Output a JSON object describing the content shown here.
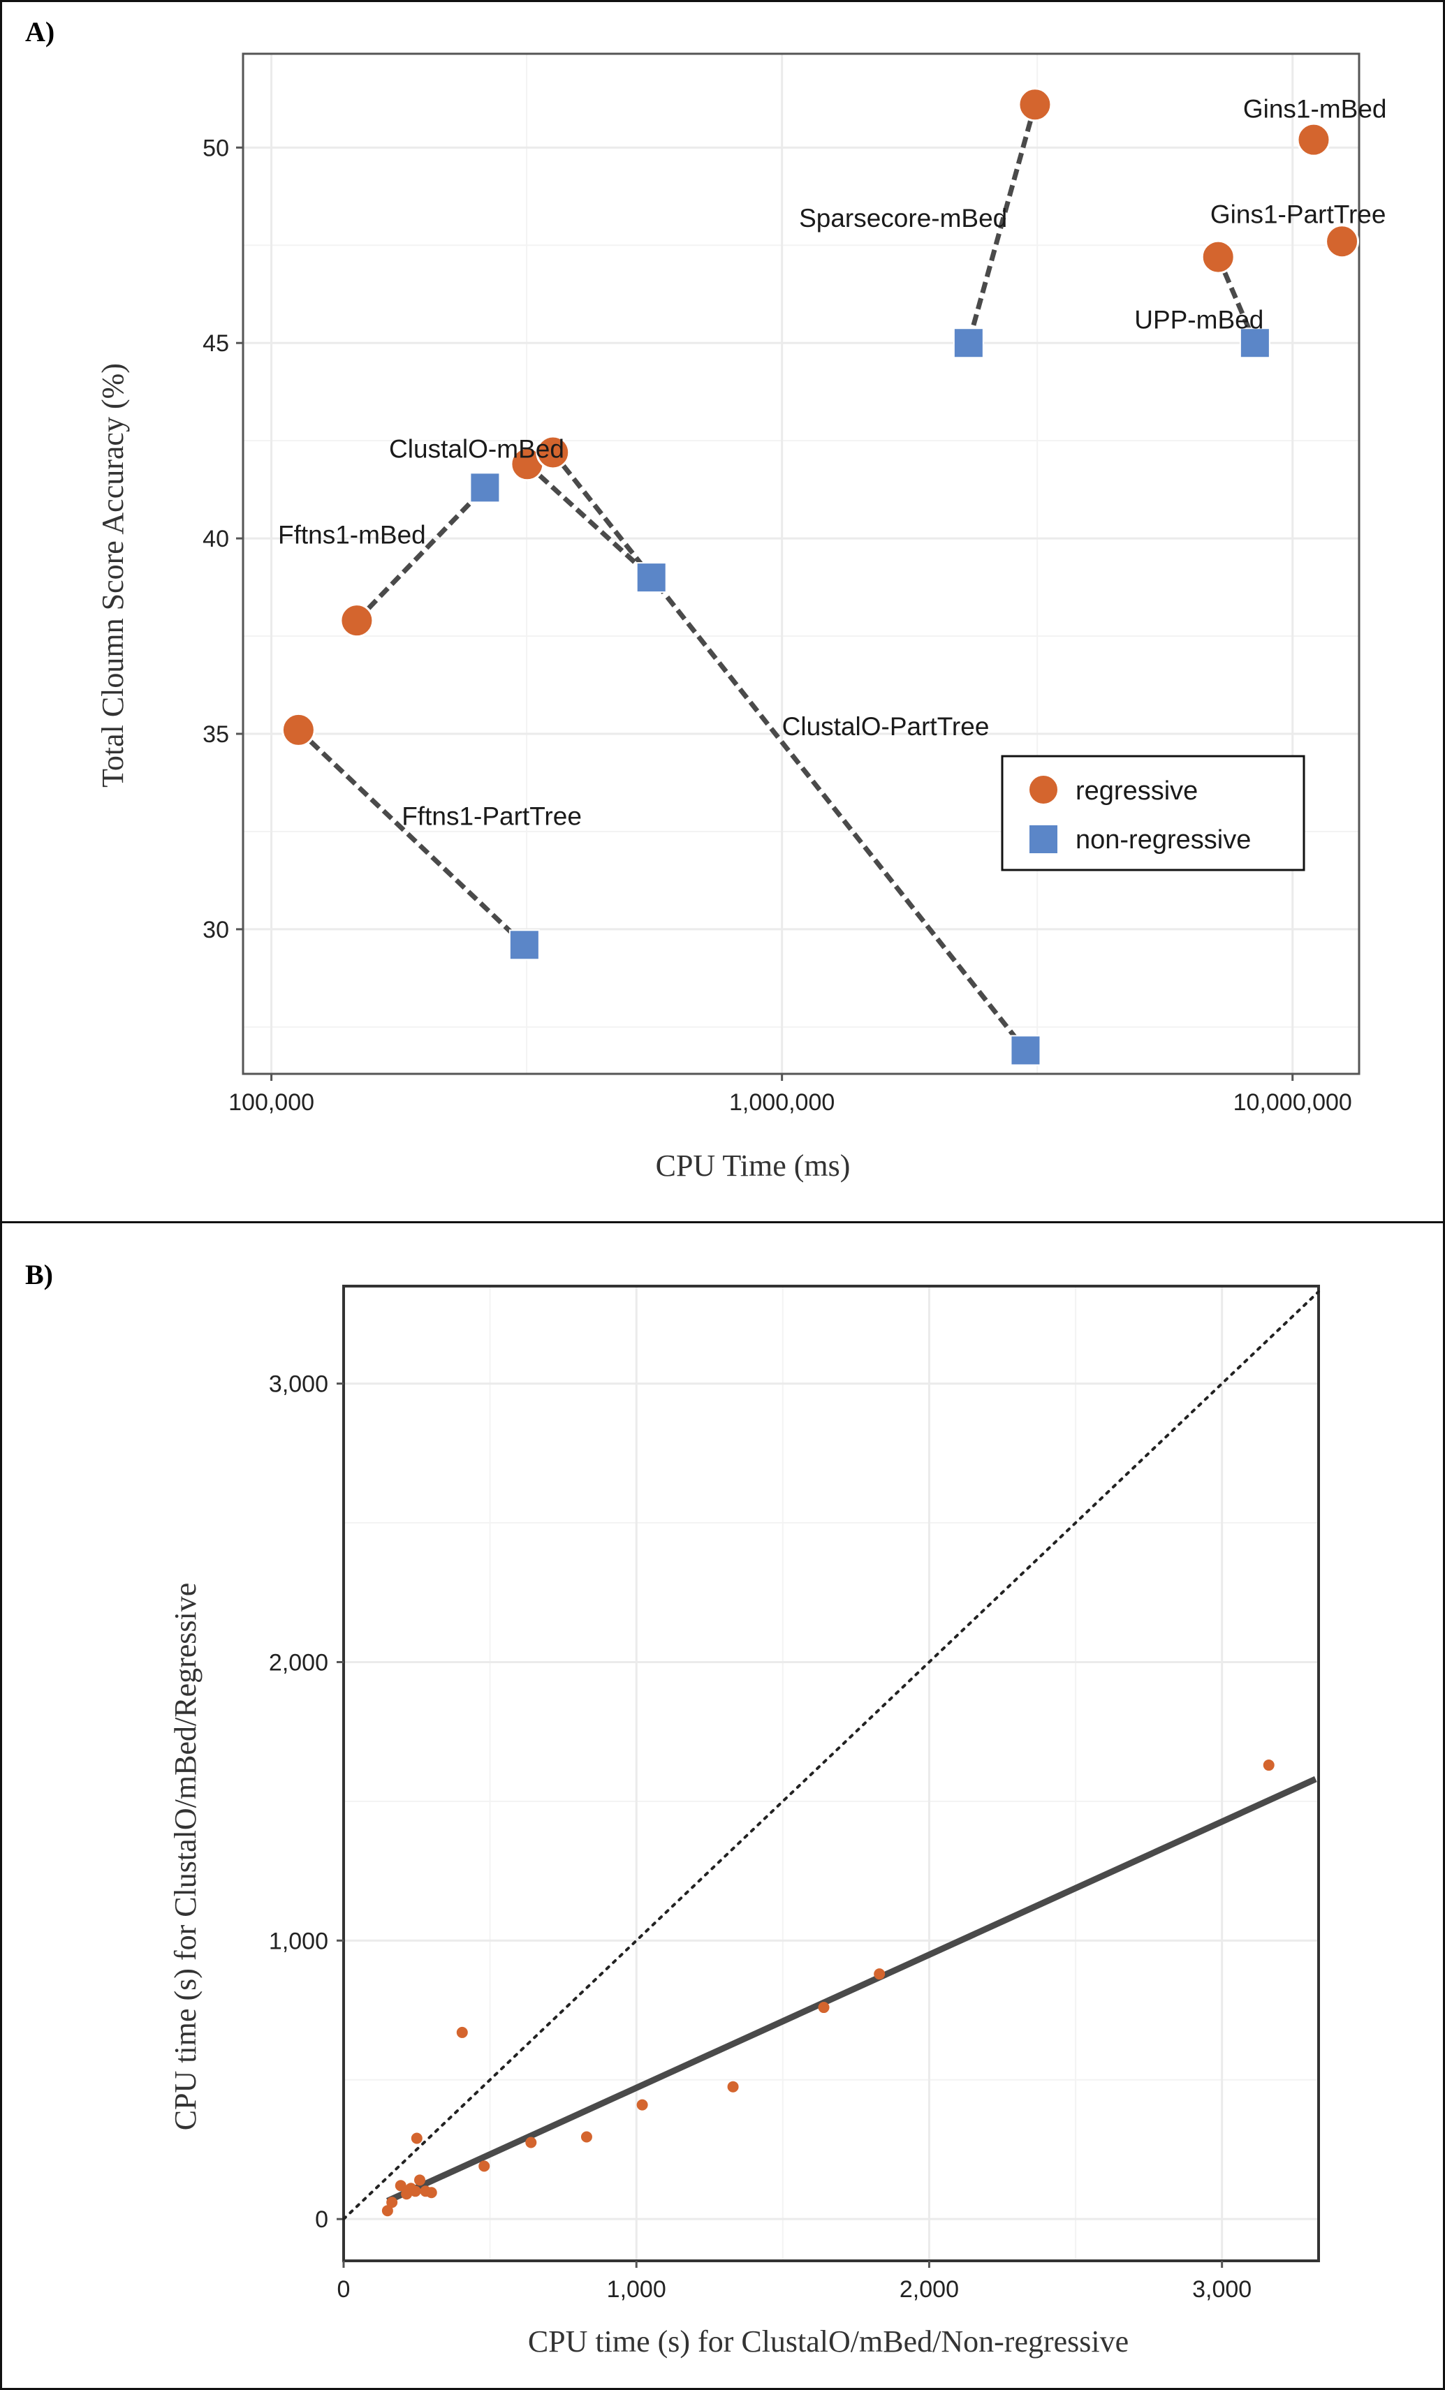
{
  "panels": {
    "a_label": "A)",
    "b_label": "B)"
  },
  "colors": {
    "regressive": "#d4652e",
    "non_regressive": "#5b86c8",
    "connector": "#4a4a4a",
    "grid": "#ebebeb",
    "axis": "#555555"
  },
  "chart_data": [
    {
      "type": "scatter",
      "title": "",
      "xlabel": "CPU Time (ms)",
      "ylabel": "Total Cloumn Score Accuracy (%)",
      "xscale": "log",
      "xlim": [
        88000,
        13500000
      ],
      "ylim": [
        26.3,
        52.4
      ],
      "xticks": [
        100000,
        1000000,
        10000000
      ],
      "xtick_labels": [
        "100,000",
        "1,000,000",
        "10,000,000"
      ],
      "yticks": [
        30,
        35,
        40,
        45,
        50
      ],
      "yminor": [
        27.5,
        32.5,
        37.5,
        42.5,
        47.5
      ],
      "xminor": [
        316228,
        3162278
      ],
      "grid": true,
      "legend": {
        "placement": "bottom-right",
        "items": [
          {
            "label": "regressive",
            "marker": "circle",
            "series": "regressive"
          },
          {
            "label": "non-regressive",
            "marker": "square",
            "series": "non_regressive"
          }
        ]
      },
      "series": [
        {
          "name": "regressive",
          "marker": "circle",
          "points": [
            {
              "x": 113000,
              "y": 35.1
            },
            {
              "x": 147000,
              "y": 37.9
            },
            {
              "x": 317000,
              "y": 41.9
            },
            {
              "x": 356000,
              "y": 42.2
            },
            {
              "x": 3130000,
              "y": 51.1
            },
            {
              "x": 7150000,
              "y": 47.2
            },
            {
              "x": 11000000,
              "y": 50.2
            },
            {
              "x": 12500000,
              "y": 47.6
            }
          ]
        },
        {
          "name": "non-regressive",
          "marker": "square",
          "points": [
            {
              "x": 262000,
              "y": 41.3
            },
            {
              "x": 313000,
              "y": 29.6
            },
            {
              "x": 555000,
              "y": 39.0
            },
            {
              "x": 2320000,
              "y": 45.0
            },
            {
              "x": 3000000,
              "y": 26.9
            },
            {
              "x": 8440000,
              "y": 45.0
            }
          ]
        }
      ],
      "pairs": [
        {
          "from": [
            147000,
            37.9
          ],
          "to": [
            262000,
            41.3
          ]
        },
        {
          "from": [
            113000,
            35.1
          ],
          "to": [
            313000,
            29.6
          ]
        },
        {
          "from": [
            317000,
            41.9
          ],
          "to": [
            555000,
            39.0
          ]
        },
        {
          "from": [
            356000,
            42.2
          ],
          "to": [
            3000000,
            26.9
          ]
        },
        {
          "from": [
            3130000,
            51.1
          ],
          "to": [
            2320000,
            45.0
          ]
        },
        {
          "from": [
            7150000,
            47.2
          ],
          "to": [
            8440000,
            45.0
          ]
        }
      ],
      "annotations": [
        {
          "text": "Gins1-mBed",
          "x": 8000000,
          "y": 51.0
        },
        {
          "text": "Sparsecore-mBed",
          "x": 1080000,
          "y": 48.2
        },
        {
          "text": "Gins1-PartTree",
          "x": 6900000,
          "y": 48.3
        },
        {
          "text": "UPP-mBed",
          "x": 4900000,
          "y": 45.6
        },
        {
          "text": "ClustalO-mBed",
          "x": 170000,
          "y": 42.3
        },
        {
          "text": "Fftns1-mBed",
          "x": 103000,
          "y": 40.1
        },
        {
          "text": "ClustalO-PartTree",
          "x": 1000000,
          "y": 35.2
        },
        {
          "text": "Fftns1-PartTree",
          "x": 180000,
          "y": 32.9
        }
      ]
    },
    {
      "type": "scatter",
      "title": "",
      "xlabel": "CPU time (s) for ClustalO/mBed/Non-regressive",
      "ylabel": "CPU time (s) for ClustalO/mBed/Regressive",
      "xlim": [
        0,
        3330
      ],
      "ylim": [
        -150,
        3350
      ],
      "xticks": [
        0,
        1000,
        2000,
        3000
      ],
      "xtick_labels": [
        "0",
        "1,000",
        "2,000",
        "3,000"
      ],
      "yticks": [
        0,
        1000,
        2000,
        3000
      ],
      "ytick_labels": [
        "0",
        "1,000",
        "2,000",
        "3,000"
      ],
      "xminor": [
        500,
        1500,
        2500
      ],
      "yminor": [
        500,
        1500,
        2500
      ],
      "grid": true,
      "series": [
        {
          "name": "",
          "marker": "circle",
          "points": [
            {
              "x": 150,
              "y": 30
            },
            {
              "x": 165,
              "y": 60
            },
            {
              "x": 195,
              "y": 120
            },
            {
              "x": 215,
              "y": 90
            },
            {
              "x": 230,
              "y": 110
            },
            {
              "x": 245,
              "y": 100
            },
            {
              "x": 250,
              "y": 290
            },
            {
              "x": 260,
              "y": 140
            },
            {
              "x": 280,
              "y": 100
            },
            {
              "x": 300,
              "y": 95
            },
            {
              "x": 405,
              "y": 670
            },
            {
              "x": 480,
              "y": 190
            },
            {
              "x": 640,
              "y": 275
            },
            {
              "x": 830,
              "y": 295
            },
            {
              "x": 1020,
              "y": 410
            },
            {
              "x": 1330,
              "y": 475
            },
            {
              "x": 1640,
              "y": 760
            },
            {
              "x": 1830,
              "y": 880
            },
            {
              "x": 3160,
              "y": 1630
            }
          ]
        }
      ],
      "reference_lines": [
        {
          "kind": "identity",
          "style": "dotted",
          "from": [
            0,
            0
          ],
          "to": [
            3330,
            3330
          ]
        },
        {
          "kind": "fit",
          "style": "solid",
          "from": [
            150,
            65
          ],
          "to": [
            3320,
            1580
          ]
        }
      ]
    }
  ]
}
